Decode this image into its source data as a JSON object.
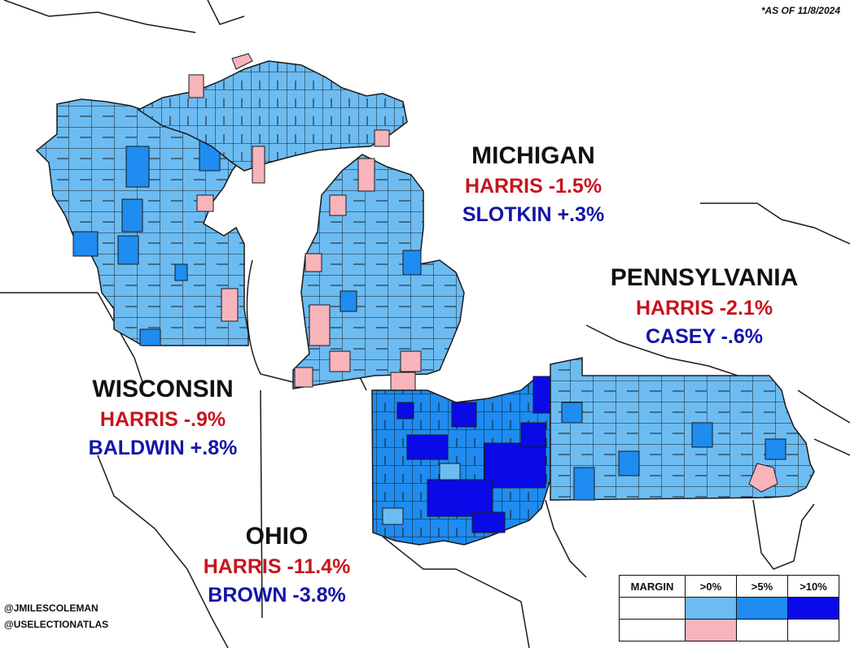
{
  "as_of": "*AS OF 11/8/2024",
  "states": [
    {
      "key": "michigan",
      "name": "MICHIGAN",
      "president": "HARRIS -1.5%",
      "senate": "SLOTKIN +.3%"
    },
    {
      "key": "pennsylvania",
      "name": "PENNSYLVANIA",
      "president": "HARRIS -2.1%",
      "senate": "CASEY -.6%"
    },
    {
      "key": "wisconsin",
      "name": "WISCONSIN",
      "president": "HARRIS -.9%",
      "senate": "BALDWIN +.8%"
    },
    {
      "key": "ohio",
      "name": "OHIO",
      "president": "HARRIS -11.4%",
      "senate": "BROWN -3.8%"
    }
  ],
  "credits": [
    "@JMILESCOLEMAN",
    "@USELECTIONATLAS"
  ],
  "legend": {
    "header": "MARGIN",
    "columns": [
      ">0%",
      ">5%",
      ">10%"
    ],
    "row1_colors": [
      "#ffffff",
      "#6cbcf2",
      "#1e8cf0",
      "#0a0ae8"
    ],
    "row2_colors": [
      "#ffffff",
      "#f7b4bb",
      "#ffffff",
      "#ffffff"
    ]
  },
  "colors": {
    "light_blue": "#6cbcf2",
    "mid_blue": "#1e8cf0",
    "dark_blue": "#0a0ae8",
    "pink": "#f7b4bb",
    "harris_red": "#c8141e",
    "senate_blue": "#1414a8"
  }
}
